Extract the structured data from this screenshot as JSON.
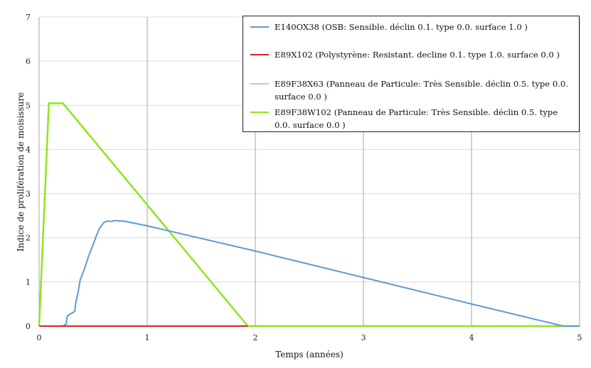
{
  "chart_data": {
    "type": "line",
    "xlabel": "Temps (années)",
    "ylabel": "Indice de prolifération de moisissure",
    "xlim": [
      0,
      5
    ],
    "ylim": [
      0,
      7
    ],
    "xticks": [
      "0",
      "1",
      "2",
      "3",
      "4",
      "5"
    ],
    "yticks": [
      "0",
      "1",
      "2",
      "3",
      "4",
      "5",
      "6",
      "7"
    ],
    "grid": "vertical lines (dark) and horizontal lines (light)",
    "legend_position": "top-right",
    "series": [
      {
        "name": "E140OX38 (OSB: Sensible. déclin 0.1. type 0.0. surface 1.0 )",
        "color": "#5b9bd5",
        "x": [
          0,
          0.22,
          0.25,
          0.26,
          0.29,
          0.31,
          0.33,
          0.34,
          0.36,
          0.37,
          0.38,
          0.42,
          0.46,
          0.5,
          0.53,
          0.56,
          0.6,
          0.63,
          0.66,
          0.7,
          0.75,
          0.78,
          1.0,
          2.0,
          3.0,
          4.0,
          4.85,
          5.0
        ],
        "y": [
          0,
          0,
          0.05,
          0.22,
          0.28,
          0.3,
          0.34,
          0.55,
          0.75,
          0.9,
          1.05,
          1.3,
          1.6,
          1.85,
          2.05,
          2.22,
          2.35,
          2.38,
          2.37,
          2.39,
          2.38,
          2.38,
          2.27,
          1.7,
          1.1,
          0.5,
          0,
          0
        ]
      },
      {
        "name": "E89X102 (Polystyrène: Resistant. decline 0.1. type 1.0. surface 0.0 )",
        "color": "#e0201c",
        "x": [
          0,
          1.93
        ],
        "y": [
          0,
          0
        ]
      },
      {
        "name": "E89F38X63 (Panneau de Particule: Très Sensible. déclin 0.5. type 0.0. surface 0.0 )",
        "color": "#c8c8c8",
        "x": [
          0,
          0.09,
          0.22,
          1.93,
          5.0
        ],
        "y": [
          0,
          5.05,
          5.05,
          0,
          0
        ]
      },
      {
        "name": "E89F38W102 (Panneau de Particule: Très Sensible. déclin 0.5. type 0.0. surface 0.0  )",
        "color": "#8fe51e",
        "x": [
          0,
          0.09,
          0.22,
          1.93,
          5.0
        ],
        "y": [
          0,
          5.05,
          5.05,
          0,
          0
        ]
      }
    ]
  }
}
